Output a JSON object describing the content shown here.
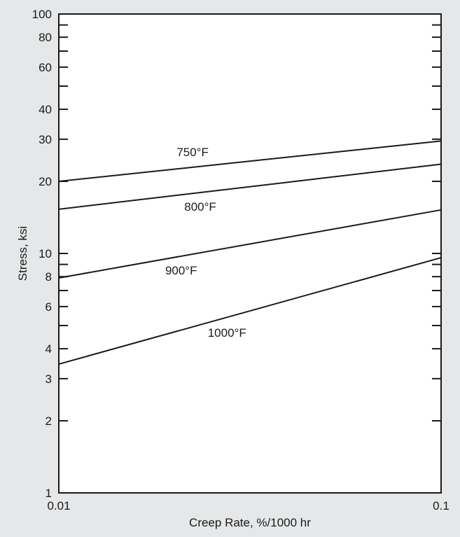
{
  "chart_data": {
    "type": "line",
    "title": "",
    "xlabel": "Creep Rate, %/1000 hr",
    "ylabel": "Stress, ksi",
    "xscale": "log",
    "yscale": "log",
    "xlim": [
      0.01,
      0.1
    ],
    "ylim": [
      1,
      100
    ],
    "x_ticks": [
      0.01,
      0.1
    ],
    "x_tick_labels": [
      "0.01",
      "0.1"
    ],
    "y_ticks": [
      1,
      2,
      3,
      4,
      6,
      8,
      10,
      20,
      30,
      40,
      60,
      80,
      100
    ],
    "y_tick_labels": [
      "1",
      "2",
      "3",
      "4",
      "6",
      "8",
      "10",
      "20",
      "30",
      "40",
      "60",
      "80",
      "100"
    ],
    "y_minor_ticks": [
      5,
      7,
      9,
      50,
      70,
      90
    ],
    "grid": false,
    "series": [
      {
        "name": "750°F",
        "x": [
          0.01,
          0.1
        ],
        "y": [
          20,
          29.5
        ]
      },
      {
        "name": "800°F",
        "x": [
          0.01,
          0.1
        ],
        "y": [
          15.3,
          23.6
        ]
      },
      {
        "name": "900°F",
        "x": [
          0.01,
          0.1
        ],
        "y": [
          7.9,
          15.2
        ]
      },
      {
        "name": "1000°F",
        "x": [
          0.01,
          0.1
        ],
        "y": [
          3.45,
          9.6
        ]
      }
    ],
    "colors": {
      "line": "#1a1a1a",
      "plot_bg": "#ffffff",
      "page_bg": "#e6e7e8"
    }
  }
}
